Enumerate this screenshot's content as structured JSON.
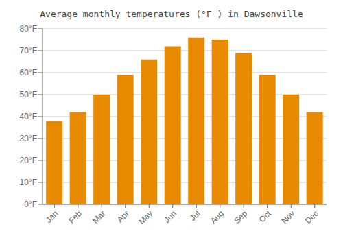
{
  "chart_data": {
    "type": "bar",
    "title": "Average monthly temperatures (°F ) in Dawsonville",
    "categories": [
      "Jan",
      "Feb",
      "Mar",
      "Apr",
      "May",
      "Jun",
      "Jul",
      "Aug",
      "Sep",
      "Oct",
      "Nov",
      "Dec"
    ],
    "values": [
      38,
      42,
      50,
      59,
      66,
      72,
      76,
      75,
      69,
      59,
      50,
      42
    ],
    "color": "#E88A00",
    "ylim": [
      0,
      80
    ],
    "yticks": [
      {
        "value": 0,
        "label": "0°F"
      },
      {
        "value": 10,
        "label": "10°F"
      },
      {
        "value": 20,
        "label": "20°F"
      },
      {
        "value": 30,
        "label": "30°F"
      },
      {
        "value": 40,
        "label": "40°F"
      },
      {
        "value": 50,
        "label": "50°F"
      },
      {
        "value": 60,
        "label": "60°F"
      },
      {
        "value": 70,
        "label": "70°F"
      },
      {
        "value": 80,
        "label": "80°F"
      }
    ],
    "grid": true
  }
}
